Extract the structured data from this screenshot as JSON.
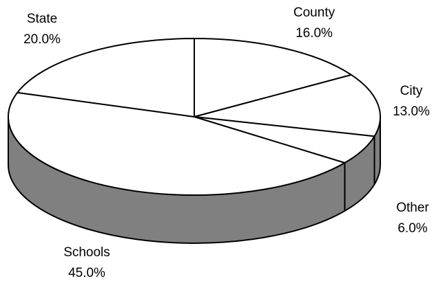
{
  "chart_data": {
    "type": "pie",
    "style": "3d",
    "title": "",
    "slices": [
      {
        "label": "County",
        "value": 16.0,
        "value_label": "16.0%"
      },
      {
        "label": "City",
        "value": 13.0,
        "value_label": "13.0%"
      },
      {
        "label": "Other",
        "value": 6.0,
        "value_label": "6.0%"
      },
      {
        "label": "Schools",
        "value": 45.0,
        "value_label": "45.0%"
      },
      {
        "label": "State",
        "value": 20.0,
        "value_label": "20.0%"
      }
    ],
    "colors": {
      "top": "#ffffff",
      "side": "#808080",
      "outline": "#000000"
    },
    "start": "12 o'clock",
    "direction": "clockwise",
    "legend": "none"
  }
}
